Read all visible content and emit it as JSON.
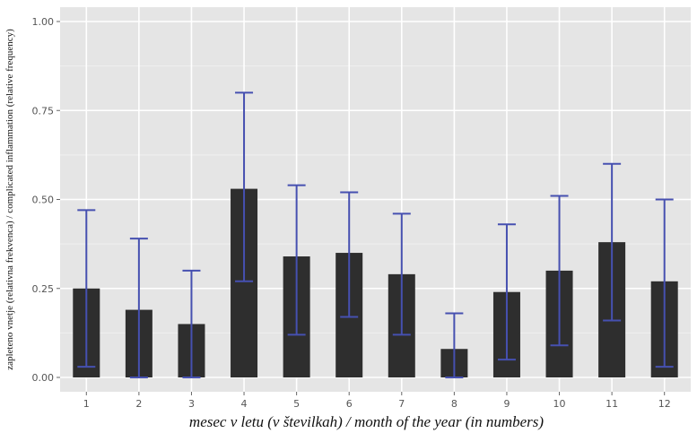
{
  "chart_data": {
    "type": "bar",
    "categories": [
      "1",
      "2",
      "3",
      "4",
      "5",
      "6",
      "7",
      "8",
      "9",
      "10",
      "11",
      "12"
    ],
    "values": [
      0.25,
      0.19,
      0.15,
      0.53,
      0.34,
      0.35,
      0.29,
      0.08,
      0.24,
      0.3,
      0.38,
      0.27
    ],
    "error_low": [
      0.03,
      0.0,
      0.0,
      0.27,
      0.12,
      0.17,
      0.12,
      0.0,
      0.05,
      0.09,
      0.16,
      0.03
    ],
    "error_high": [
      0.47,
      0.39,
      0.3,
      0.8,
      0.54,
      0.52,
      0.46,
      0.18,
      0.43,
      0.51,
      0.6,
      0.5
    ],
    "yticks": [
      "0.00",
      "0.25",
      "0.50",
      "0.75",
      "1.00"
    ],
    "ylim": [
      -0.03,
      1.04
    ],
    "title": "",
    "xlabel": "mesec v letu (v številkah) / month of the year (in numbers)",
    "ylabel": "zapleteno vnetje (relativna frekvenca) / complicated inflammation (relative frequency)",
    "grid": true,
    "colors": {
      "bar": "#2e2e2e",
      "errorbar": "#4650b0",
      "panel": "#e5e5e5",
      "grid_major": "#ffffff",
      "grid_minor": "#f0f0f0"
    }
  }
}
